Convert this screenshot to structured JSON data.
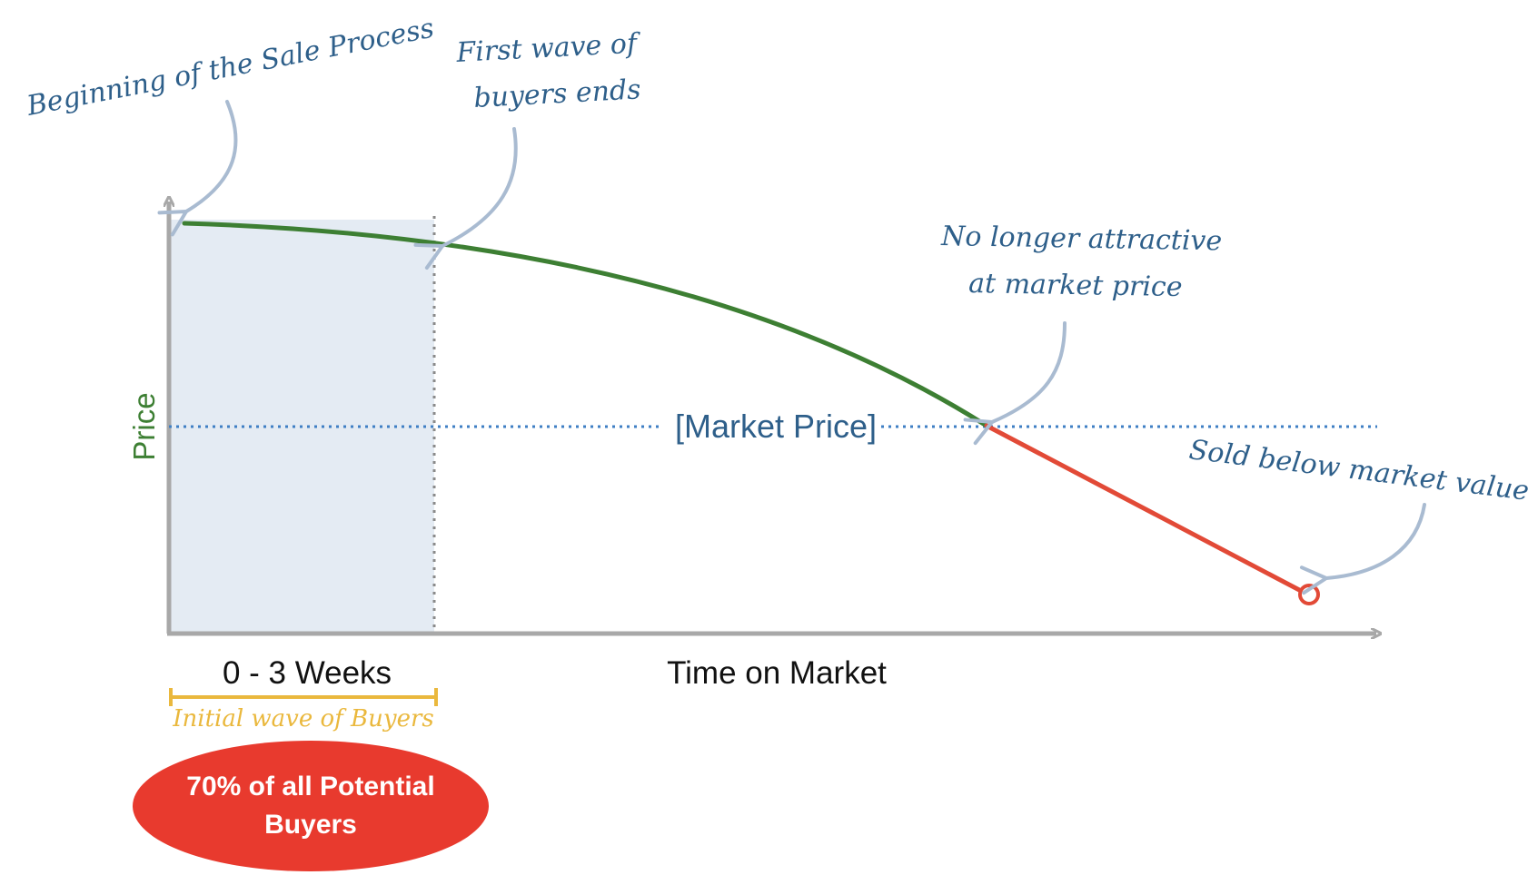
{
  "colors": {
    "price_declining_above_market": "#3d7f33",
    "price_below_market": "#e24a37",
    "market_price_line": "#3f7fc4",
    "annotation_text": "#2e5f8a",
    "annotation_arrows": "#a9bbd1",
    "initial_wave_shade": "#e4ebf3",
    "initial_wave_bracket": "#eab83d",
    "potential_buyers_bubble": "#e83a2e",
    "axes": "#a8a8a8"
  },
  "annotations": {
    "beginning": "Beginning of the Sale Process",
    "first_wave_line1": "First wave of",
    "first_wave_line2": "buyers ends",
    "no_longer_line1": "No longer attractive",
    "no_longer_line2": "at market price",
    "sold_below": "Sold below market value"
  },
  "axes": {
    "y_label": "Price",
    "x_label": "Time on Market",
    "market_price_label": "[Market Price]"
  },
  "initial_wave": {
    "period_label": "0 - 3 Weeks",
    "caption": "Initial wave of Buyers",
    "bubble_line1": "70% of all Potential",
    "bubble_line2": "Buyers"
  },
  "icons": {
    "sale_end_marker": "open-circle-icon",
    "axis_arrows": "arrow-head-icon"
  }
}
